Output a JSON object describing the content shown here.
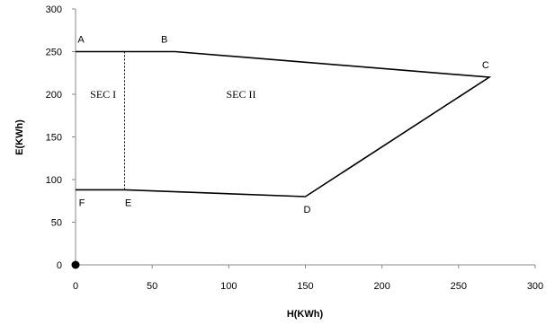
{
  "chart_data": {
    "type": "line",
    "xlabel": "H(KWh)",
    "ylabel": "E(KWh)",
    "xlim": [
      0,
      300
    ],
    "ylim": [
      0,
      300
    ],
    "xticks": [
      0,
      50,
      100,
      150,
      200,
      250,
      300
    ],
    "yticks": [
      0,
      50,
      100,
      150,
      200,
      250,
      300
    ],
    "grid": false,
    "series": [
      {
        "points": [
          {
            "label": "A",
            "x": 0,
            "y": 250
          },
          {
            "label": "B",
            "x": 65,
            "y": 250
          },
          {
            "label": "C",
            "x": 270,
            "y": 220
          },
          {
            "label": "D",
            "x": 150,
            "y": 80
          },
          {
            "label": "E",
            "x": 32,
            "y": 88
          },
          {
            "label": "F",
            "x": 0,
            "y": 88
          }
        ],
        "color": "#000000"
      }
    ],
    "divider": {
      "x": 32,
      "y_from": 88,
      "y_to": 250,
      "style": "dotted"
    },
    "origin_marker": {
      "x": 0,
      "y": 0
    },
    "region_labels": [
      {
        "text": "SEC I",
        "x": 18,
        "y": 200
      },
      {
        "text": "SEC II",
        "x": 108,
        "y": 200
      }
    ]
  }
}
